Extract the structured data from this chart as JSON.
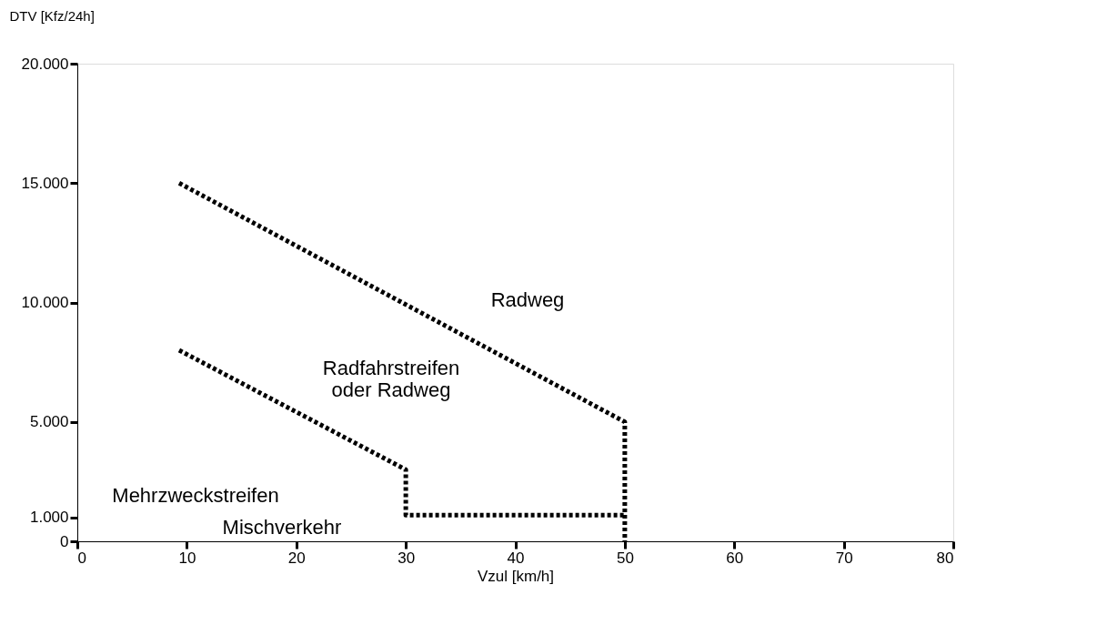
{
  "chart_data": {
    "type": "line",
    "xlabel": "Vzul [km/h]",
    "ylabel": "DTV [Kfz/24h]",
    "series": [
      {
        "x": [
          9.3,
          50,
          50
        ],
        "values": [
          15000,
          5000,
          0
        ],
        "color": "#000000"
      },
      {
        "x": [
          9.3,
          30,
          30,
          50
        ],
        "values": [
          8000,
          3000,
          1100,
          1100
        ],
        "color": "#000000"
      }
    ],
    "xlim": [
      0,
      80
    ],
    "xticks": [
      0,
      10,
      20,
      30,
      40,
      50,
      60,
      70,
      80
    ],
    "ylim": [
      0,
      20000
    ],
    "yticks": [
      {
        "value": 0,
        "label": "0"
      },
      {
        "value": 1000,
        "label": "1.000"
      },
      {
        "value": 5000,
        "label": "5.000"
      },
      {
        "value": 10000,
        "label": "10.000"
      },
      {
        "value": 15000,
        "label": "15.000"
      },
      {
        "value": 20000,
        "label": "20.000"
      }
    ],
    "annotations": [
      "Radweg",
      "Radfahrstreifen\noder Radweg",
      "Mehrzweckstreifen",
      "Mischverkehr"
    ],
    "grid": false,
    "line_style": "dotted",
    "marker": "none"
  }
}
